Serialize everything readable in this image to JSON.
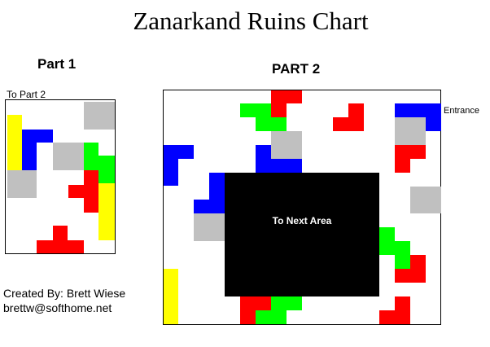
{
  "title": "Zanarkand Ruins Chart",
  "part1": {
    "heading": "Part 1",
    "exit_label": "To Part 2"
  },
  "part2": {
    "heading": "PART 2",
    "entrance_label": "Entrance",
    "center_label": "To Next Area"
  },
  "credit": {
    "line1": "Created By: Brett Wiese",
    "line2": "brettw@softhome.net"
  },
  "colors": {
    "red": "#ff0000",
    "green": "#00ff00",
    "blue": "#0000ff",
    "yellow": "#ffff00",
    "gray": "#c0c0c0",
    "black": "#000000"
  }
}
